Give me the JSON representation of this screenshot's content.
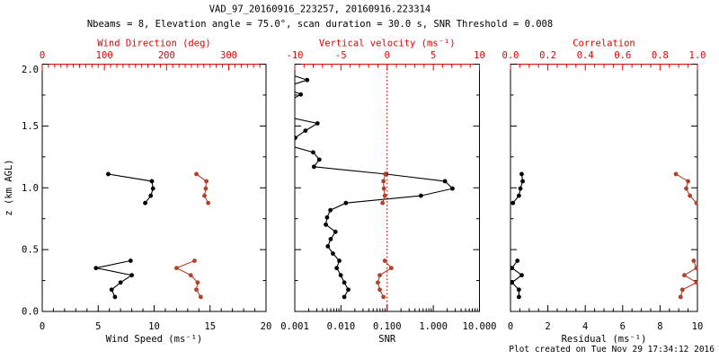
{
  "header": {
    "title": "VAD_97_20160916_223257, 20160916.223314",
    "subtitle": "Nbeams = 8, Elevation angle = 75.0°, scan duration = 30.0 s, SNR Threshold = 0.008"
  },
  "footer": {
    "created": "Plot created on Tue Nov 29 17:34:12 2016"
  },
  "colors": {
    "background": "#ffffff",
    "black": "#000000",
    "axis_red": "#e10000",
    "data_red": "#b2402b"
  },
  "chart_data": {
    "type": "line",
    "title": "VAD_97_20160916_223257, 20160916.223314",
    "subtitle": "Nbeams = 8, Elevation angle = 75.0°, scan duration = 30.0 s, SNR Threshold = 0.008",
    "y_axis": {
      "label": "z (km AGL)",
      "range": [
        0,
        2
      ],
      "ticks": [
        0.0,
        0.5,
        1.0,
        1.5,
        2.0
      ],
      "tick_labels": [
        "0.0",
        "0.5",
        "1.0",
        "1.5",
        "2.0"
      ],
      "minor_step": 0.25
    },
    "panels": [
      {
        "id": "wind",
        "show_y_labels": true,
        "bottom_axis": {
          "label": "Wind Speed (ms⁻¹)",
          "scale": "linear",
          "range": [
            0,
            20
          ],
          "ticks": [
            0,
            5,
            10,
            15,
            20
          ],
          "tick_labels": [
            "0",
            "5",
            "10",
            "15",
            "20"
          ],
          "minor_step": 1
        },
        "top_axis": {
          "label": "Wind Direction (deg)",
          "scale": "linear",
          "range": [
            0,
            360
          ],
          "ticks": [
            0,
            100,
            200,
            300
          ],
          "tick_labels": [
            "0",
            "100",
            "200",
            "300"
          ],
          "minor_step": 10
        },
        "series": [
          {
            "name": "wind-speed",
            "axis": "bottom",
            "color": "black",
            "segments": [
              [
                [
                  6.5,
                  0.117
                ],
                [
                  6.2,
                  0.176
                ],
                [
                  7.0,
                  0.234
                ],
                [
                  8.0,
                  0.293
                ],
                [
                  4.8,
                  0.351
                ],
                [
                  7.9,
                  0.41
                ]
              ],
              [
                [
                  9.2,
                  0.877
                ],
                [
                  9.7,
                  0.936
                ],
                [
                  9.9,
                  0.994
                ],
                [
                  9.8,
                  1.053
                ],
                [
                  5.9,
                  1.111
                ]
              ]
            ]
          },
          {
            "name": "wind-direction",
            "axis": "top",
            "color": "red",
            "segments": [
              [
                [
                  255,
                  0.117
                ],
                [
                  248,
                  0.176
                ],
                [
                  250,
                  0.234
                ],
                [
                  239,
                  0.293
                ],
                [
                  216,
                  0.351
                ],
                [
                  245,
                  0.41
                ]
              ],
              [
                [
                  267,
                  0.877
                ],
                [
                  261,
                  0.936
                ],
                [
                  263,
                  0.994
                ],
                [
                  264,
                  1.053
                ],
                [
                  248,
                  1.111
                ]
              ]
            ]
          }
        ]
      },
      {
        "id": "snr",
        "show_y_labels": false,
        "bottom_axis": {
          "label": "SNR",
          "scale": "log",
          "range": [
            0.001,
            10
          ],
          "ticks": [
            0.001,
            0.01,
            0.1,
            1,
            10
          ],
          "tick_labels": [
            "0.001",
            "0.010",
            "0.100",
            "1.000",
            "10.000"
          ]
        },
        "top_axis": {
          "label": "Vertical velocity (ms⁻¹)",
          "scale": "linear",
          "range": [
            -10,
            10
          ],
          "ticks": [
            -10,
            -5,
            0,
            5,
            10
          ],
          "tick_labels": [
            "-10",
            "-5",
            "0",
            "5",
            "10"
          ],
          "minor_step": 1
        },
        "ref_line": {
          "axis": "top",
          "value": 0,
          "style": "dotted",
          "color": "red"
        },
        "series": [
          {
            "name": "snr-profile",
            "axis": "bottom",
            "color": "black",
            "segments": [
              [
                [
                  0.0118,
                  0.117
                ],
                [
                  0.0144,
                  0.176
                ],
                [
                  0.0118,
                  0.234
                ],
                [
                  0.0099,
                  0.293
                ],
                [
                  0.0081,
                  0.351
                ],
                [
                  0.0092,
                  0.41
                ],
                [
                  0.0067,
                  0.468
                ],
                [
                  0.0052,
                  0.527
                ],
                [
                  0.006,
                  0.585
                ],
                [
                  0.0076,
                  0.644
                ],
                [
                  0.0047,
                  0.702
                ],
                [
                  0.005,
                  0.76
                ],
                [
                  0.0059,
                  0.819
                ],
                [
                  0.0128,
                  0.877
                ],
                [
                  0.54,
                  0.936
                ],
                [
                  2.6,
                  0.994
                ],
                [
                  1.79,
                  1.053
                ],
                [
                  0.095,
                  1.111
                ],
                [
                  0.0026,
                  1.17
                ],
                [
                  0.0034,
                  1.228
                ],
                [
                  0.0025,
                  1.287
                ],
                [
                  0.0007,
                  1.345
                ],
                [
                  0.00102,
                  1.404
                ],
                [
                  0.0017,
                  1.462
                ],
                [
                  0.0031,
                  1.521
                ],
                [
                  0.0006,
                  1.579
                ],
                [
                  0.0005,
                  1.638
                ],
                [
                  0.0007,
                  1.696
                ],
                [
                  0.00135,
                  1.755
                ],
                [
                  0.0006,
                  1.813
                ],
                [
                  0.00185,
                  1.872
                ],
                [
                  0.0006,
                  1.93
                ]
              ]
            ]
          },
          {
            "name": "vertical-velocity",
            "axis": "top",
            "color": "red",
            "segments": [
              [
                [
                  -0.4,
                  0.117
                ],
                [
                  -0.8,
                  0.176
                ],
                [
                  -1.0,
                  0.234
                ],
                [
                  -0.8,
                  0.293
                ],
                [
                  0.45,
                  0.351
                ],
                [
                  -0.25,
                  0.41
                ]
              ],
              [
                [
                  -0.5,
                  0.877
                ],
                [
                  -0.25,
                  0.936
                ],
                [
                  -0.35,
                  0.994
                ],
                [
                  -0.4,
                  1.053
                ],
                [
                  -0.2,
                  1.111
                ]
              ]
            ]
          }
        ]
      },
      {
        "id": "residual",
        "show_y_labels": false,
        "bottom_axis": {
          "label": "Residual (ms⁻¹)",
          "scale": "linear",
          "range": [
            0,
            10
          ],
          "ticks": [
            0,
            2,
            4,
            6,
            8,
            10
          ],
          "tick_labels": [
            "0",
            "2",
            "4",
            "6",
            "8",
            "10"
          ],
          "minor_step": 0.5
        },
        "top_axis": {
          "label": "Correlation",
          "scale": "linear",
          "range": [
            0,
            1
          ],
          "ticks": [
            0,
            0.2,
            0.4,
            0.6,
            0.8,
            1
          ],
          "tick_labels": [
            "0.0",
            "0.2",
            "0.4",
            "0.6",
            "0.8",
            "1.0"
          ],
          "minor_step": 0.05
        },
        "series": [
          {
            "name": "residual",
            "axis": "bottom",
            "color": "black",
            "segments": [
              [
                [
                  0.45,
                  0.117
                ],
                [
                  0.45,
                  0.176
                ],
                [
                  0.08,
                  0.234
                ],
                [
                  0.6,
                  0.293
                ],
                [
                  0.08,
                  0.351
                ],
                [
                  0.37,
                  0.41
                ]
              ],
              [
                [
                  0.13,
                  0.877
                ],
                [
                  0.45,
                  0.936
                ],
                [
                  0.53,
                  0.994
                ],
                [
                  0.65,
                  1.053
                ],
                [
                  0.6,
                  1.111
                ]
              ]
            ]
          },
          {
            "name": "correlation",
            "axis": "top",
            "color": "red",
            "segments": [
              [
                [
                  0.91,
                  0.117
                ],
                [
                  0.92,
                  0.176
                ],
                [
                  0.995,
                  0.234
                ],
                [
                  0.93,
                  0.293
                ],
                [
                  0.995,
                  0.351
                ],
                [
                  0.98,
                  0.41
                ]
              ],
              [
                [
                  0.995,
                  0.877
                ],
                [
                  0.96,
                  0.936
                ],
                [
                  0.94,
                  0.994
                ],
                [
                  0.95,
                  1.053
                ],
                [
                  0.885,
                  1.111
                ]
              ]
            ]
          }
        ]
      }
    ]
  }
}
